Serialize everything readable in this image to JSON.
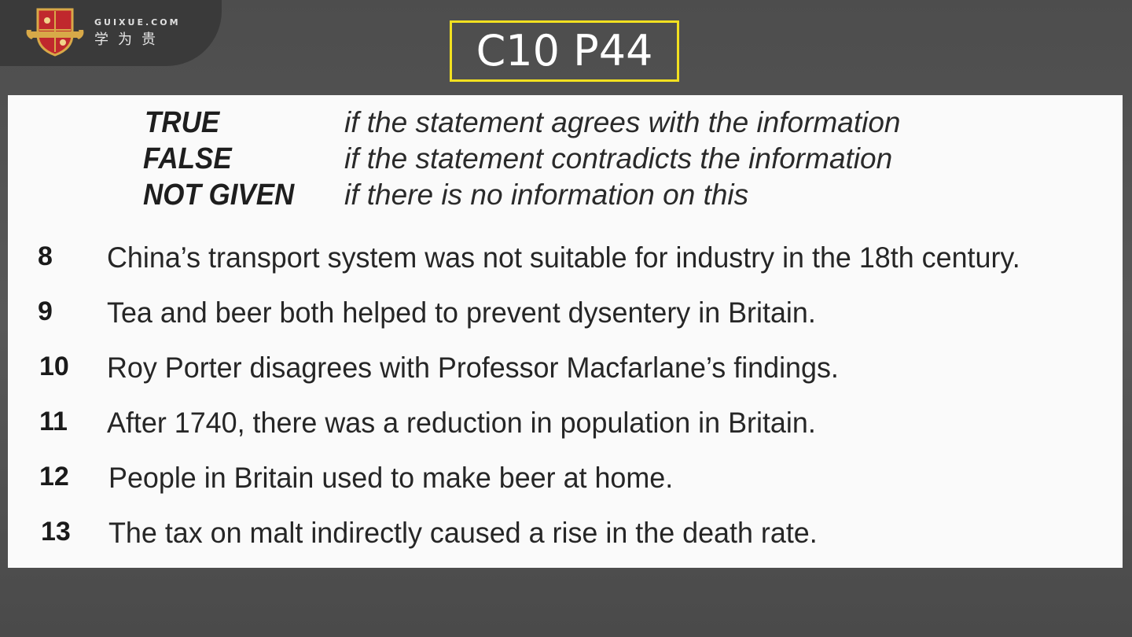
{
  "logo": {
    "site": "GUIXUE.COM",
    "name_cn": "学为贵"
  },
  "slide_title": "C10 P44",
  "legend": [
    {
      "term": "TRUE",
      "desc": "if the statement agrees with the information"
    },
    {
      "term": "FALSE",
      "desc": "if the statement contradicts the information"
    },
    {
      "term": "NOT GIVEN",
      "desc": "if there is no information on this"
    }
  ],
  "questions": [
    {
      "num": "8",
      "text": "China’s transport system was not suitable for industry in the 18th century."
    },
    {
      "num": "9",
      "text": "Tea and beer both helped to prevent dysentery in Britain."
    },
    {
      "num": "10",
      "text": "Roy Porter disagrees with Professor Macfarlane’s findings."
    },
    {
      "num": "11",
      "text": "After 1740, there was a reduction in population in Britain."
    },
    {
      "num": "12",
      "text": "People in Britain used to make beer at home."
    },
    {
      "num": "13",
      "text": "The tax on malt indirectly caused a rise in the death rate."
    }
  ],
  "colors": {
    "title_border": "#f2e020",
    "shield_red": "#c0282d",
    "shield_gold": "#d8a948"
  }
}
